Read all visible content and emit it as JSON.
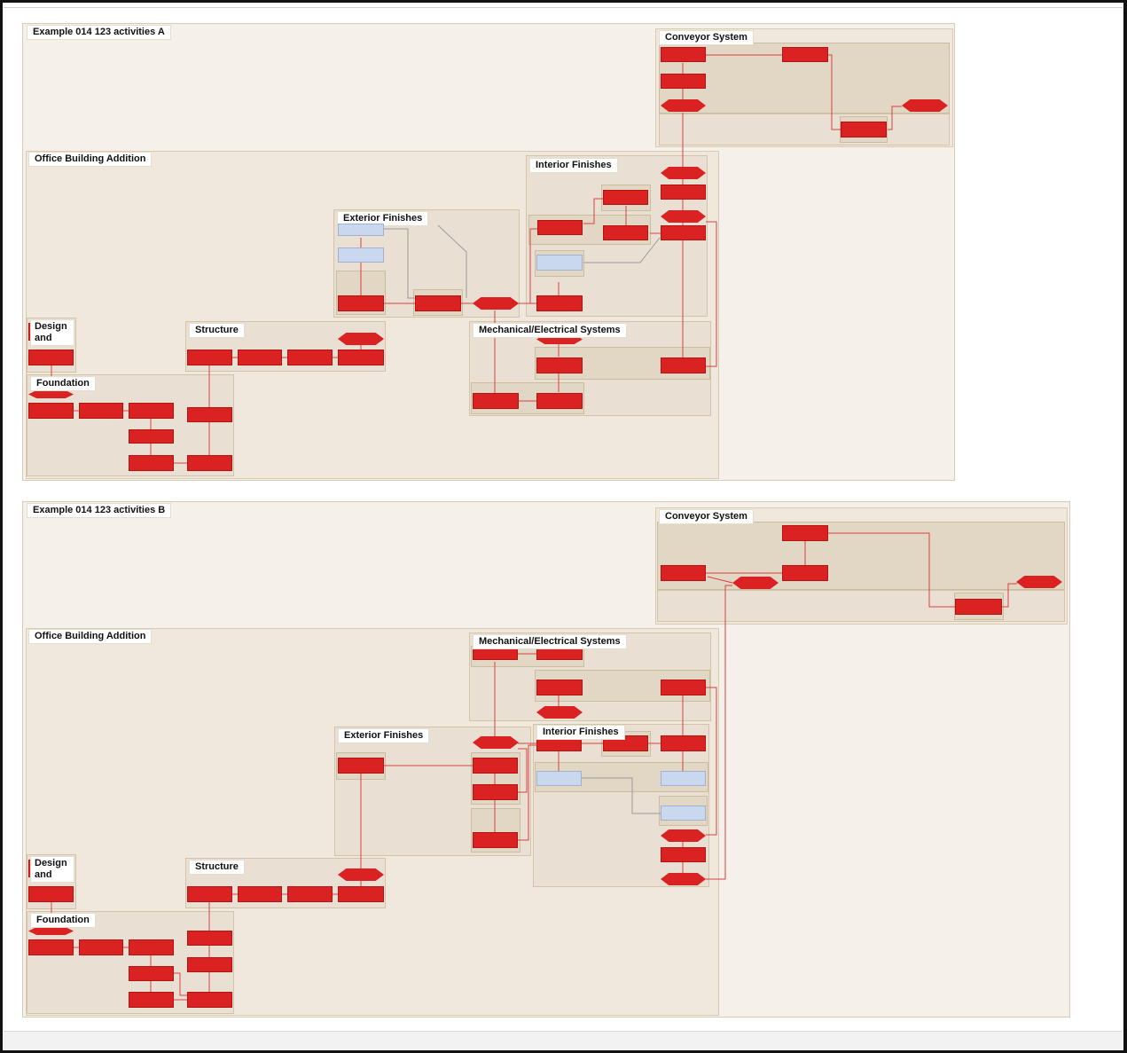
{
  "diagrams": [
    {
      "title": "Example 014 123 activities A",
      "groups": {
        "conveyor": "Conveyor System",
        "office": "Office Building Addition",
        "interior": "Interior Finishes",
        "exterior": "Exterior Finishes",
        "mechanical": "Mechanical/Electrical Systems",
        "structure": "Structure",
        "design": "Design and",
        "foundation": "Foundation"
      }
    },
    {
      "title": "Example 014 123 activities B",
      "groups": {
        "conveyor": "Conveyor System",
        "office": "Office Building Addition",
        "mechanical": "Mechanical/Electrical Systems",
        "exterior": "Exterior Finishes",
        "interior": "Interior Finishes",
        "design": "Design and",
        "structure": "Structure",
        "foundation": "Foundation"
      }
    }
  ],
  "colors": {
    "activity": "#db2222",
    "milestone": "#db2222",
    "summary_activity": "#c9d8ef",
    "link": "#d94040",
    "neutral_link": "#9a9a9a",
    "group_background": "#f0e8dd"
  }
}
